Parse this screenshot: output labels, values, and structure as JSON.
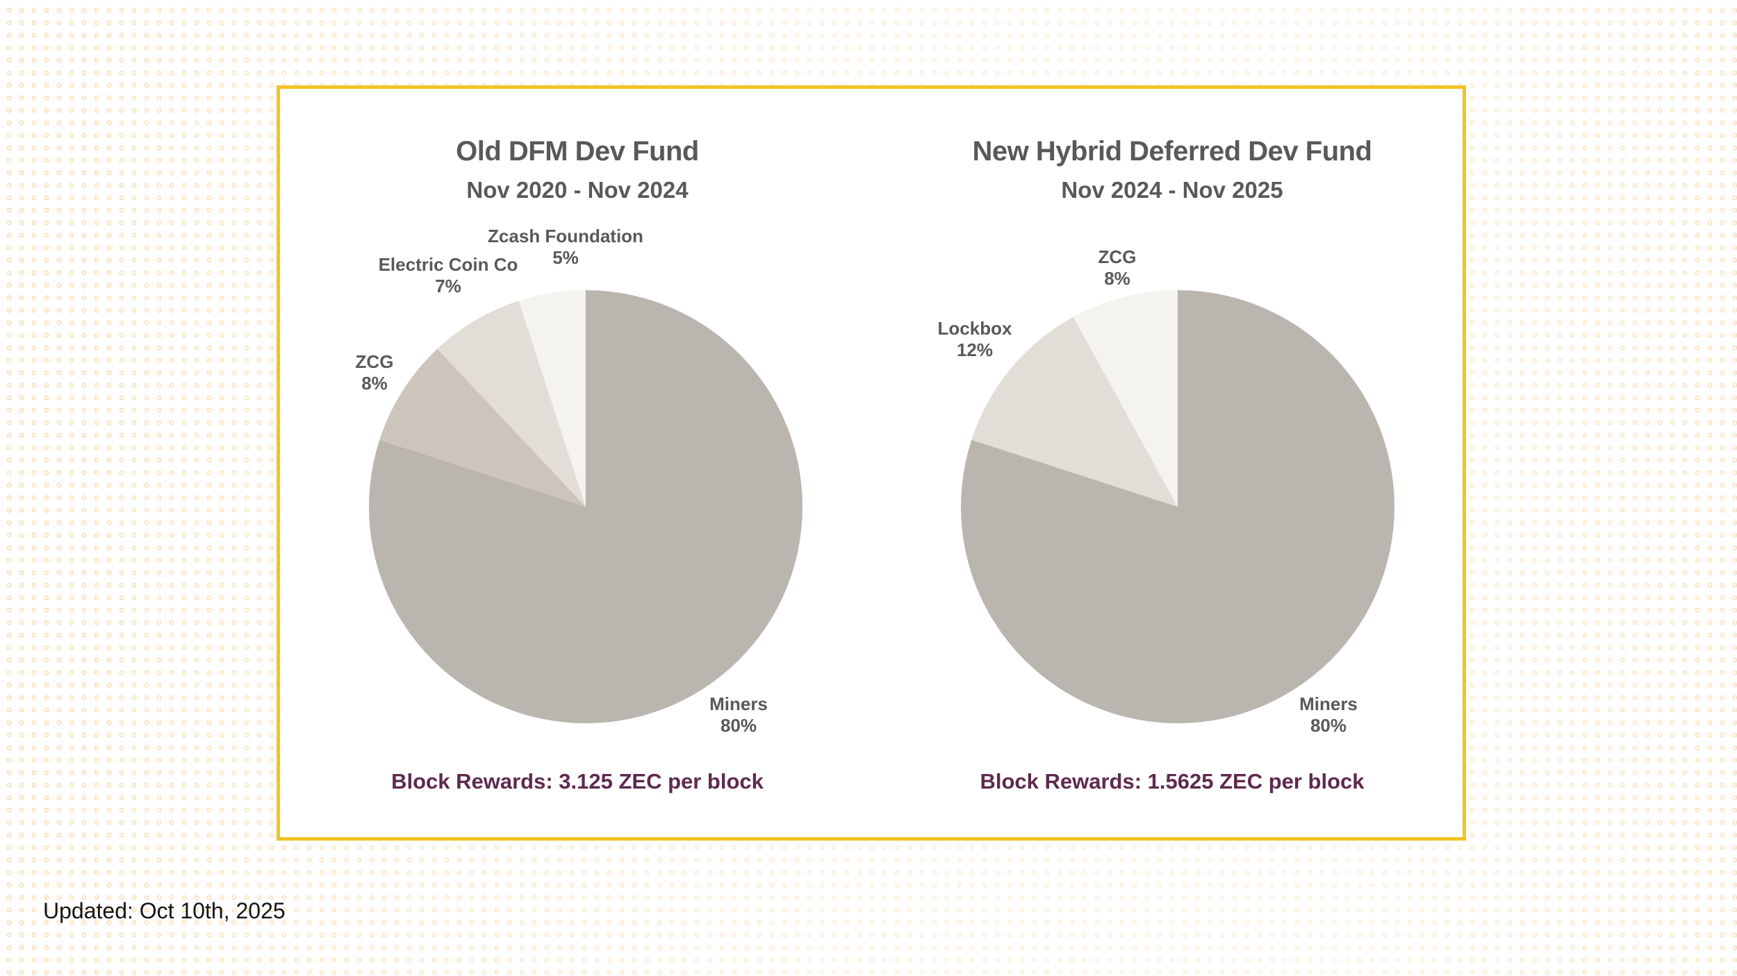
{
  "theme": {
    "panel_border": "#F2C326",
    "chart_text": "#58595B",
    "caption_color": "#5E2A4E",
    "dot_ring": "rgba(246,199,122,0.55)",
    "page_bg": "#FFFFFF"
  },
  "footer": {
    "updated": "Updated: Oct 10th, 2025"
  },
  "chart_data": [
    {
      "type": "pie",
      "title": "Old DFM Dev Fund",
      "subtitle": "Nov 2020 - Nov 2024",
      "caption": "Block Rewards: 3.125 ZEC per block",
      "direction": "clockwise",
      "start_angle": "12-oclock",
      "legend_position": "none",
      "slices": [
        {
          "label": "Miners",
          "value": 80,
          "pct_label": "80%",
          "color": "#BAB5AE"
        },
        {
          "label": "ZCG",
          "value": 8,
          "pct_label": "8%",
          "color": "#CBC5BC"
        },
        {
          "label": "Electric Coin Co",
          "value": 7,
          "pct_label": "7%",
          "color": "#E2DED7"
        },
        {
          "label": "Zcash Foundation",
          "value": 5,
          "pct_label": "5%",
          "color": "#F5F3EE"
        }
      ]
    },
    {
      "type": "pie",
      "title": "New Hybrid Deferred Dev Fund",
      "subtitle": "Nov 2024 - Nov 2025",
      "caption": "Block Rewards: 1.5625 ZEC per block",
      "direction": "clockwise",
      "start_angle": "12-oclock",
      "legend_position": "none",
      "slices": [
        {
          "label": "Miners",
          "value": 80,
          "pct_label": "80%",
          "color": "#BAB5AE"
        },
        {
          "label": "Lockbox",
          "value": 12,
          "pct_label": "12%",
          "color": "#E2DED7"
        },
        {
          "label": "ZCG",
          "value": 8,
          "pct_label": "8%",
          "color": "#F5F3EE"
        }
      ]
    }
  ]
}
